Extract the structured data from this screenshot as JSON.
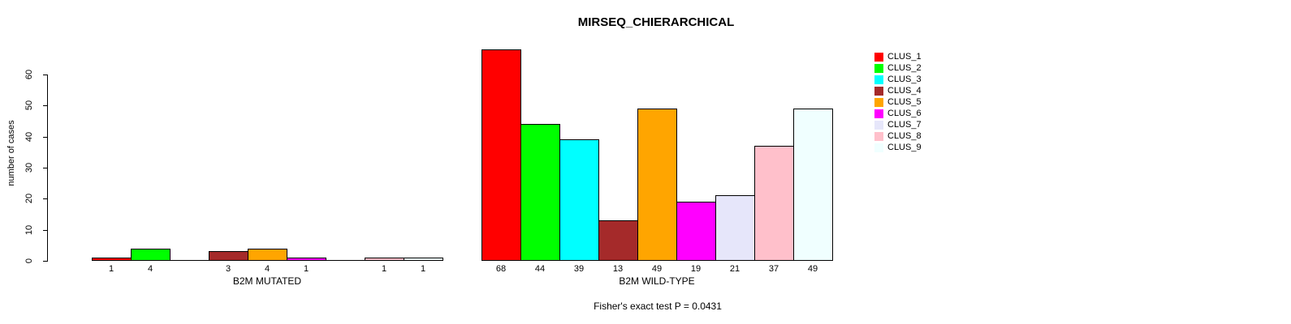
{
  "title": "MIRSEQ_CHIERARCHICAL",
  "chart_data": {
    "type": "bar",
    "title": "MIRSEQ_CHIERARCHICAL",
    "xlabel": "",
    "ylabel": "number of cases",
    "ylim": [
      0,
      60
    ],
    "yticks": [
      0,
      10,
      20,
      30,
      40,
      50,
      60
    ],
    "grid": false,
    "legend_position": "right",
    "legend": [
      {
        "label": "CLUS_1",
        "color": "#FF0000"
      },
      {
        "label": "CLUS_2",
        "color": "#00FF00"
      },
      {
        "label": "CLUS_3",
        "color": "#00FFFF"
      },
      {
        "label": "CLUS_4",
        "color": "#A52A2A"
      },
      {
        "label": "CLUS_5",
        "color": "#FFA500"
      },
      {
        "label": "CLUS_6",
        "color": "#FF00FF"
      },
      {
        "label": "CLUS_7",
        "color": "#E6E6FA"
      },
      {
        "label": "CLUS_8",
        "color": "#FFC0CB"
      },
      {
        "label": "CLUS_9",
        "color": "#F0FFFF"
      }
    ],
    "groups": [
      {
        "label": "B2M MUTATED",
        "values": [
          1,
          4,
          0,
          3,
          4,
          1,
          0,
          1,
          1
        ]
      },
      {
        "label": "B2M WILD-TYPE",
        "values": [
          68,
          44,
          39,
          13,
          49,
          19,
          21,
          37,
          49
        ]
      }
    ],
    "bar_value_labels": "shown under each nonzero bar",
    "annotation": "Fisher's exact test P = 0.0431"
  }
}
